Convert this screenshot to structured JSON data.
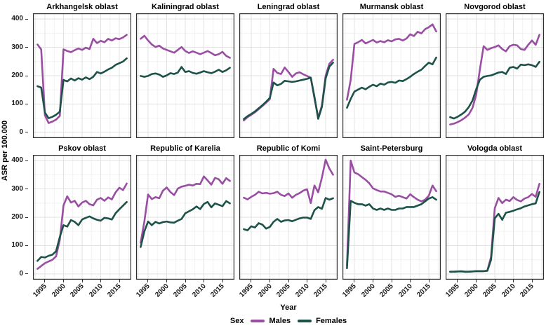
{
  "figure": {
    "y_axis_label": "ASR per 100.000",
    "x_axis_label": "Year",
    "y_ticks": [
      400,
      300,
      200,
      100,
      0
    ],
    "x_ticks": [
      1995,
      2000,
      2005,
      2010,
      2015
    ],
    "legend": {
      "title": "Sex",
      "series": [
        {
          "label": "Males",
          "color": "#9A4EA3"
        },
        {
          "label": "Females",
          "color": "#1C5247"
        }
      ]
    }
  },
  "chart_data": {
    "type": "line",
    "title": "",
    "xlabel": "Year",
    "ylabel": "ASR per 100.000",
    "ylim": [
      0,
      400
    ],
    "grid": true,
    "legend_position": "bottom",
    "males_color": "#9A4EA3",
    "females_color": "#1C5247",
    "border_color": "#2e2e2e",
    "grid_major_color": "#e2e2e2",
    "grid_minor_color": "#f0f0f0",
    "x": [
      1993,
      1994,
      1995,
      1996,
      1997,
      1998,
      1999,
      2000,
      2001,
      2002,
      2003,
      2004,
      2005,
      2006,
      2007,
      2008,
      2009,
      2010,
      2011,
      2012,
      2013,
      2014,
      2015,
      2016,
      2017
    ],
    "y_minor": [
      50,
      150,
      250,
      350
    ],
    "x_minor": [
      1992.5,
      1997.5,
      2002.5,
      2007.5,
      2012.5,
      2017.5
    ],
    "facets": [
      {
        "id": "arkhangelsk",
        "title": "Arkhangelsk oblast",
        "series": {
          "males": [
            310,
            293,
            60,
            33,
            38,
            45,
            58,
            293,
            287,
            283,
            290,
            296,
            291,
            299,
            294,
            330,
            315,
            323,
            318,
            330,
            324,
            332,
            329,
            335,
            344
          ],
          "females": [
            163,
            158,
            70,
            50,
            55,
            62,
            73,
            185,
            180,
            190,
            183,
            191,
            186,
            194,
            188,
            196,
            213,
            208,
            214,
            222,
            228,
            238,
            244,
            250,
            261
          ]
        }
      },
      {
        "id": "kaliningrad",
        "title": "Kaliningrad oblast",
        "series": {
          "males": [
            330,
            341,
            324,
            310,
            301,
            306,
            296,
            291,
            286,
            281,
            291,
            301,
            287,
            280,
            286,
            281,
            276,
            281,
            287,
            280,
            272,
            276,
            284,
            270,
            263
          ],
          "females": [
            199,
            196,
            199,
            206,
            208,
            204,
            196,
            201,
            209,
            206,
            211,
            231,
            213,
            216,
            210,
            207,
            211,
            216,
            212,
            209,
            214,
            221,
            213,
            219,
            228
          ]
        }
      },
      {
        "id": "leningrad",
        "title": "Leningrad oblast",
        "series": {
          "males": [
            42,
            54,
            62,
            71,
            82,
            93,
            105,
            118,
            224,
            210,
            206,
            229,
            213,
            196,
            208,
            212,
            205,
            199,
            193,
            120,
            52,
            95,
            200,
            242,
            256
          ],
          "females": [
            47,
            57,
            65,
            74,
            85,
            96,
            108,
            122,
            176,
            166,
            171,
            182,
            180,
            178,
            180,
            183,
            186,
            189,
            193,
            125,
            48,
            90,
            190,
            232,
            246
          ]
        }
      },
      {
        "id": "murmansk",
        "title": "Murmansk oblast",
        "series": {
          "males": [
            115,
            185,
            312,
            318,
            326,
            314,
            320,
            326,
            317,
            322,
            318,
            325,
            321,
            328,
            330,
            324,
            331,
            346,
            340,
            355,
            349,
            364,
            371,
            381,
            356
          ],
          "females": [
            87,
            118,
            144,
            151,
            158,
            152,
            161,
            168,
            163,
            172,
            168,
            176,
            178,
            175,
            183,
            181,
            188,
            196,
            206,
            214,
            221,
            234,
            246,
            240,
            264
          ]
        }
      },
      {
        "id": "novgorod",
        "title": "Novgorod oblast",
        "series": {
          "males": [
            28,
            31,
            36,
            43,
            52,
            63,
            86,
            132,
            222,
            304,
            291,
            297,
            301,
            307,
            294,
            286,
            304,
            309,
            307,
            294,
            291,
            309,
            324,
            309,
            344
          ],
          "females": [
            54,
            49,
            55,
            63,
            73,
            89,
            112,
            152,
            186,
            196,
            199,
            201,
            206,
            211,
            213,
            206,
            228,
            231,
            225,
            239,
            237,
            240,
            237,
            231,
            249
          ]
        }
      },
      {
        "id": "pskov",
        "title": "Pskov oblast",
        "series": {
          "males": [
            18,
            28,
            38,
            44,
            50,
            62,
            120,
            242,
            274,
            252,
            258,
            238,
            252,
            258,
            246,
            242,
            262,
            268,
            258,
            270,
            263,
            288,
            304,
            296,
            319
          ],
          "females": [
            46,
            60,
            58,
            64,
            68,
            80,
            130,
            172,
            167,
            190,
            184,
            172,
            192,
            198,
            203,
            196,
            191,
            188,
            198,
            196,
            192,
            214,
            228,
            241,
            254
          ]
        }
      },
      {
        "id": "karelia",
        "title": "Republic of Karelia",
        "series": {
          "males": [
            110,
            185,
            280,
            264,
            271,
            267,
            294,
            305,
            289,
            278,
            301,
            308,
            311,
            315,
            312,
            318,
            317,
            344,
            330,
            315,
            339,
            334,
            318,
            338,
            328
          ],
          "females": [
            95,
            150,
            185,
            172,
            184,
            178,
            183,
            185,
            182,
            181,
            188,
            194,
            214,
            221,
            228,
            238,
            229,
            247,
            254,
            235,
            249,
            244,
            239,
            257,
            249
          ]
        }
      },
      {
        "id": "komi",
        "title": "Republic of Komi",
        "series": {
          "males": [
            269,
            263,
            272,
            279,
            290,
            284,
            286,
            283,
            285,
            290,
            279,
            275,
            284,
            269,
            279,
            285,
            294,
            299,
            250,
            312,
            288,
            340,
            403,
            372,
            350
          ],
          "females": [
            158,
            154,
            168,
            164,
            179,
            174,
            160,
            166,
            184,
            194,
            184,
            189,
            190,
            186,
            191,
            196,
            199,
            199,
            194,
            225,
            236,
            230,
            268,
            262,
            267
          ]
        }
      },
      {
        "id": "saint-petersburg",
        "title": "Saint-Petersburg",
        "series": {
          "males": [
            30,
            400,
            358,
            352,
            342,
            332,
            320,
            302,
            296,
            291,
            291,
            286,
            281,
            272,
            276,
            271,
            266,
            281,
            271,
            262,
            256,
            262,
            276,
            312,
            292
          ],
          "females": [
            20,
            258,
            251,
            246,
            246,
            241,
            246,
            231,
            226,
            231,
            226,
            231,
            226,
            226,
            231,
            231,
            236,
            236,
            236,
            241,
            246,
            256,
            266,
            271,
            262
          ]
        }
      },
      {
        "id": "vologda",
        "title": "Vologda oblast",
        "series": {
          "males": [
            8,
            8,
            9,
            10,
            8,
            8,
            9,
            10,
            10,
            10,
            12,
            60,
            232,
            268,
            250,
            262,
            257,
            271,
            261,
            256,
            266,
            271,
            282,
            272,
            318
          ],
          "females": [
            8,
            8,
            9,
            9,
            8,
            8,
            9,
            10,
            10,
            10,
            11,
            50,
            196,
            212,
            191,
            216,
            219,
            223,
            228,
            232,
            238,
            242,
            246,
            249,
            289
          ]
        }
      }
    ]
  }
}
